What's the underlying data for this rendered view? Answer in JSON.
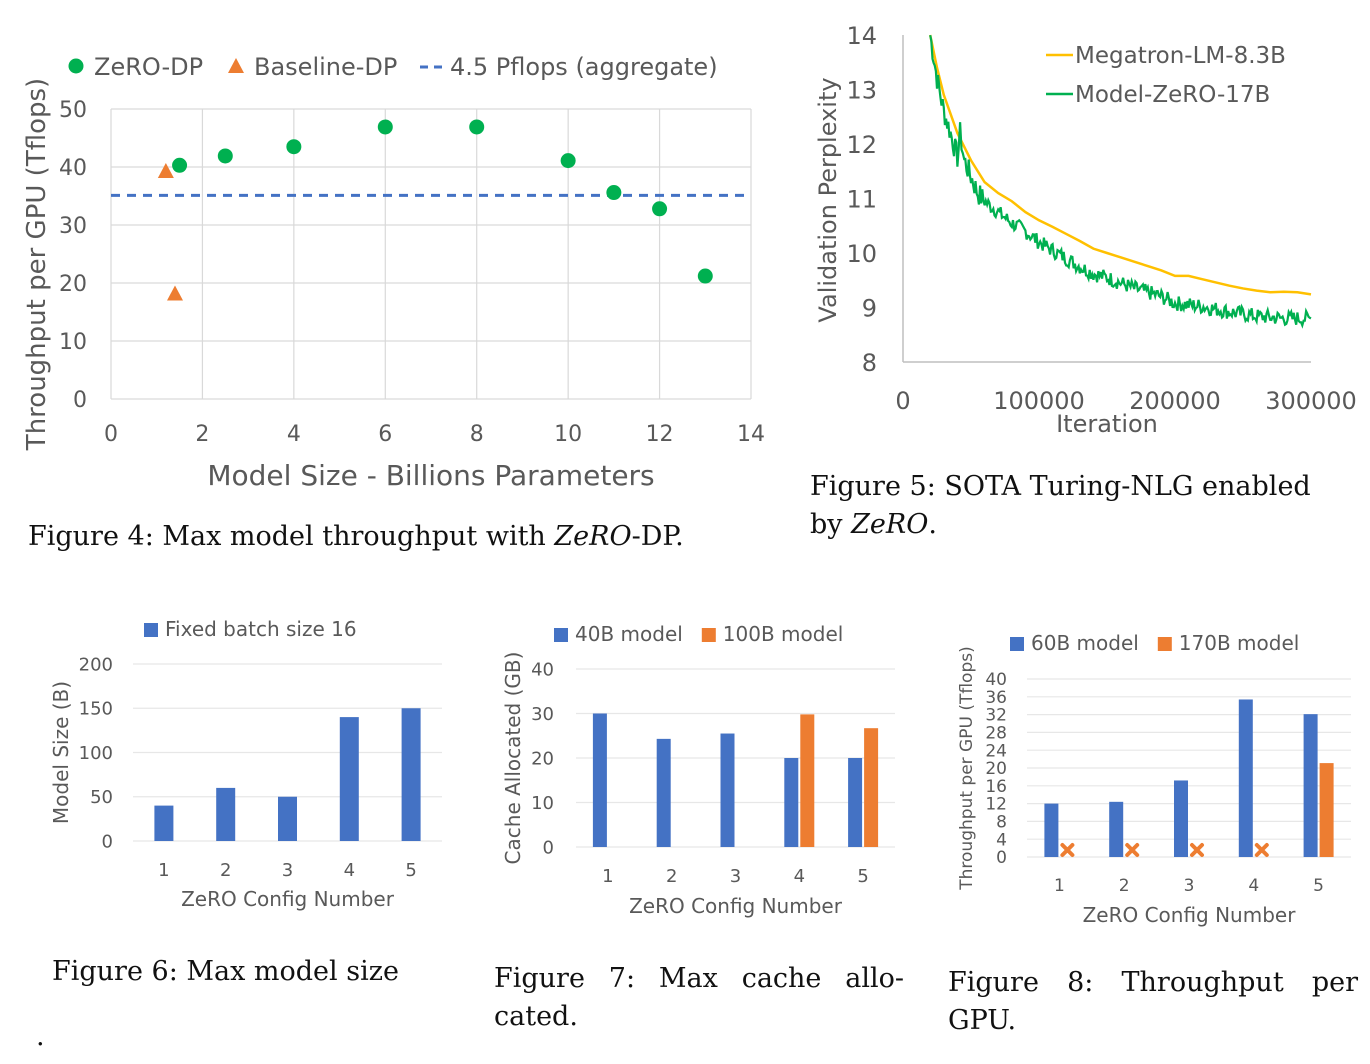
{
  "captions": {
    "fig4": {
      "prefix": "Figure 4: Max model throughput with ",
      "italic": "ZeRO",
      "suffix": "-DP."
    },
    "fig5": {
      "line1": "Figure 5: SOTA Turing-NLG enabled",
      "prefix": "by ",
      "italic": "ZeRO",
      "suffix": "."
    },
    "fig6": "Figure 6: Max model size",
    "fig7": "Figure 7:  Max cache allo-cated.",
    "fig8": "Figure 8:  Throughput per GPU.",
    "stray_mark": "."
  },
  "colors": {
    "green": "#00B050",
    "orange": "#ED7D31",
    "blue": "#4472C4",
    "gold": "#FFC000",
    "grid": "#D9D9D9",
    "axis_text": "#595959"
  },
  "chart_data": [
    {
      "id": "fig4",
      "type": "scatter",
      "title": "",
      "xlabel": "Model Size - Billions Parameters",
      "ylabel": "Throughput per GPU (Tflops)",
      "xlim": [
        0,
        14
      ],
      "ylim": [
        0,
        50
      ],
      "xticks": [
        0,
        2,
        4,
        6,
        8,
        10,
        12,
        14
      ],
      "yticks": [
        0,
        10,
        20,
        30,
        40,
        50
      ],
      "grid": true,
      "legend_position": "top",
      "series": [
        {
          "name": "ZeRO-DP",
          "marker": "circle",
          "color": "#00B050",
          "x": [
            1.5,
            2.5,
            4,
            6,
            8,
            10,
            11,
            12,
            13
          ],
          "y": [
            40.3,
            41.9,
            43.5,
            46.9,
            46.9,
            41.1,
            35.6,
            32.8,
            21.2
          ]
        },
        {
          "name": "Baseline-DP",
          "marker": "triangle",
          "color": "#ED7D31",
          "x": [
            1.2,
            1.4
          ],
          "y": [
            39.3,
            18.2
          ]
        },
        {
          "name": "4.5 Pflops (aggregate)",
          "marker": "dashed-line",
          "color": "#4472C4",
          "y_constant": 35.1
        }
      ]
    },
    {
      "id": "fig5",
      "type": "line",
      "title": "",
      "xlabel": "Iteration",
      "ylabel": "Validation Perplexity",
      "xlim": [
        0,
        300000
      ],
      "ylim": [
        8,
        14
      ],
      "xticks": [
        0,
        100000,
        200000,
        300000
      ],
      "yticks": [
        8,
        9,
        10,
        11,
        12,
        13,
        14
      ],
      "grid": false,
      "legend_position": "top-right",
      "series": [
        {
          "name": "Megatron-LM-8.3B",
          "color": "#FFC000",
          "x": [
            20000,
            25000,
            30000,
            40000,
            50000,
            60000,
            70000,
            80000,
            90000,
            100000,
            110000,
            120000,
            130000,
            140000,
            150000,
            160000,
            170000,
            180000,
            190000,
            200000,
            210000,
            220000,
            230000,
            240000,
            250000,
            260000,
            270000,
            280000,
            290000,
            300000
          ],
          "y": [
            14.0,
            13.4,
            12.9,
            12.2,
            11.7,
            11.3,
            11.1,
            10.95,
            10.75,
            10.6,
            10.48,
            10.35,
            10.22,
            10.08,
            10.0,
            9.92,
            9.84,
            9.76,
            9.68,
            9.58,
            9.58,
            9.52,
            9.46,
            9.4,
            9.35,
            9.31,
            9.28,
            9.29,
            9.28,
            9.24
          ]
        },
        {
          "name": "Model-ZeRO-17B",
          "color": "#00B050",
          "x": [
            20000,
            25000,
            30000,
            35000,
            40000,
            42000,
            45000,
            50000,
            55000,
            60000,
            70000,
            80000,
            90000,
            100000,
            110000,
            120000,
            130000,
            140000,
            150000,
            160000,
            170000,
            180000,
            190000,
            200000,
            210000,
            220000,
            230000,
            240000,
            250000,
            260000,
            270000,
            280000,
            290000,
            300000
          ],
          "y": [
            14.0,
            13.2,
            12.6,
            12.2,
            11.75,
            12.2,
            11.7,
            11.4,
            11.1,
            10.95,
            10.75,
            10.55,
            10.4,
            10.2,
            10.05,
            9.9,
            9.75,
            9.62,
            9.55,
            9.45,
            9.35,
            9.28,
            9.2,
            9.08,
            9.05,
            9.02,
            8.97,
            8.92,
            8.88,
            8.84,
            8.82,
            8.8,
            8.8,
            8.8
          ]
        }
      ]
    },
    {
      "id": "fig6",
      "type": "bar",
      "title": "",
      "xlabel": "ZeRO Config Number",
      "ylabel": "Model Size (B)",
      "categories": [
        "1",
        "2",
        "3",
        "4",
        "5"
      ],
      "ylim": [
        0,
        200
      ],
      "yticks": [
        0,
        50,
        100,
        150,
        200
      ],
      "grid": true,
      "legend_position": "top",
      "series": [
        {
          "name": "Fixed batch size 16",
          "color": "#4472C4",
          "values": [
            40,
            60,
            50,
            140,
            150
          ]
        }
      ]
    },
    {
      "id": "fig7",
      "type": "bar",
      "title": "",
      "xlabel": "ZeRO Config Number",
      "ylabel": "Cache Allocated (GB)",
      "categories": [
        "1",
        "2",
        "3",
        "4",
        "5"
      ],
      "ylim": [
        0,
        40
      ],
      "yticks": [
        0,
        10,
        20,
        30,
        40
      ],
      "grid": true,
      "legend_position": "top",
      "series": [
        {
          "name": "40B model",
          "color": "#4472C4",
          "values": [
            30,
            24.3,
            25.5,
            20,
            20
          ]
        },
        {
          "name": "100B model",
          "color": "#ED7D31",
          "values": [
            null,
            null,
            null,
            29.8,
            26.7
          ]
        }
      ]
    },
    {
      "id": "fig8",
      "type": "bar",
      "title": "",
      "xlabel": "ZeRO Config Number",
      "ylabel": "Throughput per GPU (Tflops)",
      "categories": [
        "1",
        "2",
        "3",
        "4",
        "5"
      ],
      "ylim": [
        0,
        40
      ],
      "yticks": [
        0,
        4,
        8,
        12,
        16,
        20,
        24,
        28,
        32,
        36,
        40
      ],
      "grid": true,
      "legend_position": "top",
      "annotations": [
        "x marker = not runnable (170B model, configs 1-4)"
      ],
      "series": [
        {
          "name": "60B model",
          "color": "#4472C4",
          "values": [
            12,
            12.4,
            17.2,
            35.4,
            32.1
          ]
        },
        {
          "name": "170B model",
          "color": "#ED7D31",
          "values": [
            null,
            null,
            null,
            null,
            21.1
          ],
          "failed_marker": [
            true,
            true,
            true,
            true,
            false
          ]
        }
      ]
    }
  ]
}
